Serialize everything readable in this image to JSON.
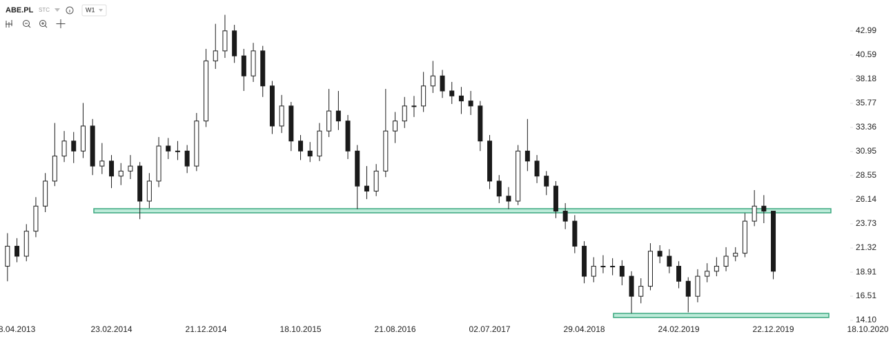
{
  "chart_data": {
    "type": "candlestick",
    "symbol": "ABE.PL",
    "exchange": "STC",
    "interval": "W1",
    "categories": [
      null,
      "8.04.2013",
      null,
      null,
      null,
      null,
      null,
      null,
      null,
      null,
      null,
      "23.02.2014",
      null,
      null,
      null,
      null,
      null,
      null,
      null,
      null,
      null,
      "21.12.2014",
      null,
      null,
      null,
      null,
      null,
      null,
      null,
      null,
      null,
      "18.10.2015",
      null,
      null,
      null,
      null,
      null,
      null,
      null,
      null,
      null,
      "21.08.2016",
      null,
      null,
      null,
      null,
      null,
      null,
      null,
      null,
      null,
      "02.07.2017",
      null,
      null,
      null,
      null,
      null,
      null,
      null,
      null,
      null,
      "29.04.2018",
      null,
      null,
      null,
      null,
      null,
      null,
      null,
      null,
      null,
      "24.02.2019",
      null,
      null,
      null,
      null,
      null,
      null,
      null,
      null,
      null,
      "22.12.2019",
      null,
      null,
      null,
      null,
      null,
      null,
      null,
      null,
      null,
      "18.10.2020"
    ],
    "series": [
      {
        "up_color": "#ffffff",
        "down_color": "#1a1a1a",
        "values": [
          [
            19.5,
            22.8,
            18.0,
            21.5
          ],
          [
            21.5,
            22.3,
            19.9,
            20.5
          ],
          [
            20.5,
            23.7,
            20.0,
            23
          ],
          [
            23,
            26.4,
            22.4,
            25.5
          ],
          [
            25.5,
            28.8,
            24.9,
            28
          ],
          [
            28,
            33.8,
            27.5,
            30.5
          ],
          [
            30.5,
            33,
            29.9,
            32
          ],
          [
            32,
            32.9,
            29.8,
            31
          ],
          [
            31,
            35.8,
            30.3,
            33.5
          ],
          [
            33.5,
            34.2,
            28.6,
            29.5
          ],
          [
            29.5,
            31.8,
            28.7,
            30
          ],
          [
            30,
            30.6,
            27.3,
            28.5
          ],
          [
            28.5,
            29.8,
            27.6,
            29
          ],
          [
            29,
            30.6,
            28.2,
            29.5
          ],
          [
            29.5,
            29.9,
            24.2,
            26
          ],
          [
            26,
            28.8,
            25.3,
            28
          ],
          [
            28,
            32.4,
            27.4,
            31.5
          ],
          [
            31.5,
            32.3,
            30.2,
            31
          ],
          [
            31,
            32.0,
            30.1,
            31
          ],
          [
            31,
            31.6,
            28.8,
            29.5
          ],
          [
            29.5,
            34.8,
            29.0,
            34
          ],
          [
            34,
            41.2,
            33.4,
            40
          ],
          [
            40,
            43.7,
            39.2,
            41
          ],
          [
            41,
            44.6,
            40.3,
            43
          ],
          [
            43,
            43.6,
            39.8,
            40.5
          ],
          [
            40.5,
            41.2,
            37.0,
            38.5
          ],
          [
            38.5,
            41.8,
            37.9,
            41
          ],
          [
            41,
            41.5,
            36.4,
            37.5
          ],
          [
            37.5,
            38.0,
            32.7,
            33.5
          ],
          [
            33.5,
            36.6,
            32.8,
            35.5
          ],
          [
            35.5,
            35.9,
            31.0,
            32
          ],
          [
            32,
            32.6,
            30.1,
            31
          ],
          [
            31,
            31.9,
            29.9,
            30.5
          ],
          [
            30.5,
            33.8,
            30.0,
            33
          ],
          [
            33,
            37.2,
            32.4,
            35
          ],
          [
            35,
            37.0,
            33.1,
            34
          ],
          [
            34,
            34.6,
            30.2,
            31
          ],
          [
            31,
            31.6,
            25.2,
            27.5
          ],
          [
            27.5,
            29.5,
            26.2,
            27
          ],
          [
            27,
            29.7,
            26.5,
            29
          ],
          [
            29,
            37.2,
            28.4,
            33
          ],
          [
            33,
            34.9,
            31.8,
            34
          ],
          [
            34,
            36.4,
            33.3,
            35.5
          ],
          [
            35.5,
            36.5,
            34.4,
            35.5
          ],
          [
            35.5,
            38.9,
            34.9,
            37.5
          ],
          [
            37.5,
            40.0,
            36.8,
            38.5
          ],
          [
            38.5,
            39.1,
            36.3,
            37
          ],
          [
            37,
            37.9,
            35.7,
            36.5
          ],
          [
            36.5,
            37.4,
            34.7,
            36
          ],
          [
            36,
            37.0,
            34.6,
            35.5
          ],
          [
            35.5,
            36.0,
            31.0,
            32
          ],
          [
            32,
            32.6,
            27.2,
            28
          ],
          [
            28,
            28.6,
            25.8,
            26.5
          ],
          [
            26.5,
            27.4,
            25.2,
            26
          ],
          [
            26,
            31.6,
            25.6,
            31
          ],
          [
            31,
            34.2,
            29.0,
            30
          ],
          [
            30,
            30.6,
            27.8,
            28.5
          ],
          [
            28.5,
            29.0,
            26.6,
            27.5
          ],
          [
            27.5,
            28.0,
            24.3,
            25
          ],
          [
            25,
            25.8,
            23.2,
            24
          ],
          [
            24,
            24.6,
            20.8,
            21.5
          ],
          [
            21.5,
            22.0,
            17.8,
            18.5
          ],
          [
            18.5,
            20.4,
            17.9,
            19.5
          ],
          [
            19.5,
            20.6,
            18.8,
            19.5
          ],
          [
            19.5,
            20.3,
            18.6,
            19.5
          ],
          [
            19.5,
            20.1,
            17.6,
            18.5
          ],
          [
            18.5,
            19.0,
            14.8,
            16.5
          ],
          [
            16.5,
            18.3,
            15.8,
            17.5
          ],
          [
            17.5,
            21.8,
            17.1,
            21
          ],
          [
            21,
            21.6,
            19.8,
            20.5
          ],
          [
            20.5,
            21.2,
            18.8,
            19.5
          ],
          [
            19.5,
            20.0,
            17.3,
            18
          ],
          [
            18,
            18.4,
            14.9,
            16.5
          ],
          [
            16.5,
            19.2,
            15.9,
            18.5
          ],
          [
            18.5,
            19.8,
            17.9,
            19
          ],
          [
            19,
            20.4,
            18.5,
            19.5
          ],
          [
            19.5,
            21.4,
            19.0,
            20.5
          ],
          [
            20.5,
            21.4,
            20.0,
            20.8
          ],
          [
            20.8,
            24.8,
            20.4,
            24
          ],
          [
            24,
            27.1,
            23.5,
            25.5
          ],
          [
            25.5,
            26.6,
            23.8,
            25
          ],
          [
            25,
            25.0,
            18.2,
            19
          ],
          null,
          null,
          null,
          null,
          null,
          null,
          null,
          null,
          null,
          null
        ]
      }
    ],
    "ylim": [
      13.76,
      46.08
    ],
    "yticks": [
      42.99,
      40.59,
      38.18,
      35.77,
      33.36,
      30.95,
      28.55,
      26.14,
      23.73,
      21.32,
      18.91,
      16.51,
      {
        "value": 14.1,
        "label": "14.10"
      }
    ],
    "grid": false
  }
}
